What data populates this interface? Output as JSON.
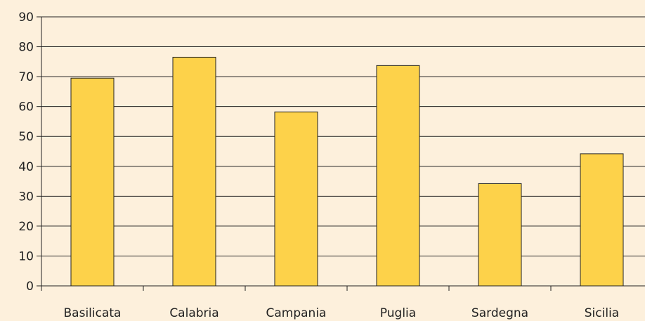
{
  "chart_data": {
    "type": "bar",
    "title": "",
    "xlabel": "",
    "ylabel": "",
    "categories": [
      "Basilicata",
      "Calabria",
      "Campania",
      "Puglia",
      "Sardegna",
      "Sicilia"
    ],
    "values": [
      69.5,
      76.5,
      58.2,
      73.7,
      34.2,
      44.2
    ],
    "ylim": [
      0,
      90
    ],
    "yticks": [
      0,
      10,
      20,
      30,
      40,
      50,
      60,
      70,
      80,
      90
    ],
    "grid": true,
    "legend": "none",
    "colors": {
      "background": "#fdf0dc",
      "bar_fill": "#fdd24a",
      "bar_stroke": "#222222",
      "gridline": "#222222",
      "text": "#222222"
    }
  }
}
